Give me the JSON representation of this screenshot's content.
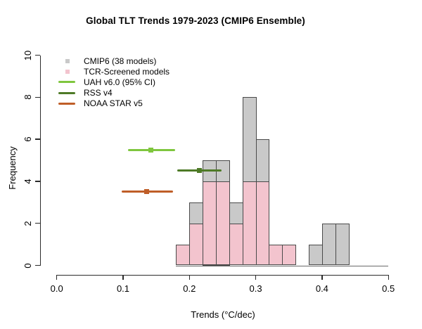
{
  "chart_data": {
    "type": "bar",
    "subtype": "overlaid-histogram",
    "title": "Global TLT Trends 1979-2023 (CMIP6 Ensemble)",
    "xlabel": "Trends (°C/dec)",
    "ylabel": "Frequency",
    "xlim": [
      0.0,
      0.5
    ],
    "ylim": [
      0,
      10
    ],
    "grid": false,
    "legend_position": "top-left-inside",
    "x_ticks": [
      {
        "v": 0.0,
        "label": "0.0"
      },
      {
        "v": 0.1,
        "label": "0.1"
      },
      {
        "v": 0.2,
        "label": "0.2"
      },
      {
        "v": 0.3,
        "label": "0.3"
      },
      {
        "v": 0.4,
        "label": "0.4"
      },
      {
        "v": 0.5,
        "label": "0.5"
      }
    ],
    "y_ticks": [
      {
        "v": 0,
        "label": "0"
      },
      {
        "v": 2,
        "label": "2"
      },
      {
        "v": 4,
        "label": "4"
      },
      {
        "v": 6,
        "label": "6"
      },
      {
        "v": 8,
        "label": "8"
      },
      {
        "v": 10,
        "label": "10"
      }
    ],
    "bin_width": 0.02,
    "bin_edges": [
      0.18,
      0.2,
      0.22,
      0.24,
      0.26,
      0.28,
      0.3,
      0.32,
      0.34,
      0.36,
      0.38,
      0.4,
      0.42,
      0.44
    ],
    "series": [
      {
        "name": "CMIP6 (38 models)",
        "color": "#c9c9c9",
        "counts": [
          1,
          3,
          5,
          5,
          3,
          8,
          6,
          1,
          1,
          0,
          1,
          2,
          2
        ],
        "total": 38
      },
      {
        "name": "TCR-Screened models",
        "color": "#f3c4ce",
        "counts": [
          1,
          2,
          4,
          4,
          2,
          4,
          4,
          1,
          1,
          0,
          0,
          0,
          0
        ],
        "total": 23
      }
    ],
    "bar_border_color": "#4a4a4a",
    "error_bars": [
      {
        "name": "UAH v6.0 (95% CI)",
        "slug": "uah",
        "color": "#7fc63e",
        "y": 5.5,
        "x_min": 0.107,
        "x_center": 0.142,
        "x_max": 0.178
      },
      {
        "name": "RSS v4",
        "slug": "rss",
        "color": "#4e7a27",
        "y": 4.5,
        "x_min": 0.182,
        "x_center": 0.215,
        "x_max": 0.248
      },
      {
        "name": "NOAA STAR v5",
        "slug": "noaa",
        "color": "#bf5e28",
        "y": 3.5,
        "x_min": 0.098,
        "x_center": 0.136,
        "x_max": 0.175
      }
    ]
  },
  "legend": {
    "items": [
      {
        "marker": "square",
        "color": "#c9c9c9",
        "label": "CMIP6 (38 models)"
      },
      {
        "marker": "square",
        "color": "#f3c4ce",
        "label": "TCR-Screened models"
      },
      {
        "marker": "line",
        "color": "#7fc63e",
        "label": "UAH v6.0 (95% CI)"
      },
      {
        "marker": "line",
        "color": "#4e7a27",
        "label": "RSS v4"
      },
      {
        "marker": "line",
        "color": "#bf5e28",
        "label": "NOAA STAR v5"
      }
    ]
  }
}
